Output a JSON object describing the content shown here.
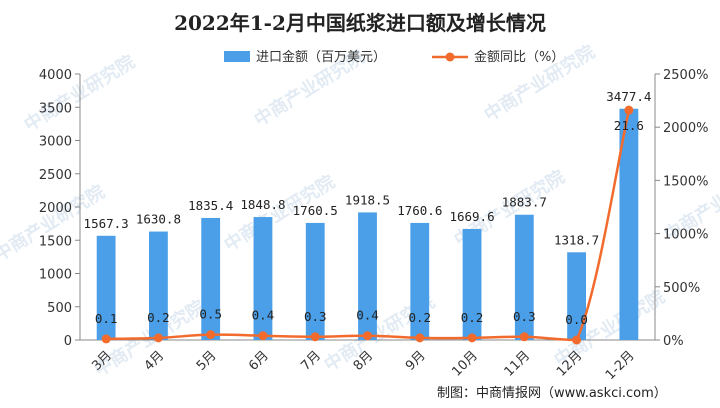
{
  "watermark": "中商产业研究院",
  "chart_data": {
    "type": "bar",
    "title": "2022年1-2月中国纸浆进口额及增长情况",
    "categories": [
      "3月",
      "4月",
      "5月",
      "6月",
      "7月",
      "8月",
      "9月",
      "10月",
      "11月",
      "12月",
      "1-2月"
    ],
    "series": [
      {
        "name": "进口金额（百万美元）",
        "type": "bar",
        "axis": "left",
        "color": "#4a9fe8",
        "values": [
          1567.3,
          1630.8,
          1835.4,
          1848.8,
          1760.5,
          1918.5,
          1760.6,
          1669.6,
          1883.7,
          1318.7,
          3477.4
        ],
        "labels": [
          "1567.3",
          "1630.8",
          "1835.4",
          "1848.8",
          "1760.5",
          "1918.5",
          "1760.6",
          "1669.6",
          "1883.7",
          "1318.7",
          "3477.4"
        ]
      },
      {
        "name": "金额同比（%）",
        "type": "line",
        "axis": "right",
        "color": "#f26b2d",
        "values": [
          0.1,
          0.2,
          0.5,
          0.4,
          0.3,
          0.4,
          0.2,
          0.2,
          0.3,
          0.0,
          21.6
        ],
        "labels": [
          "0.1",
          "0.2",
          "0.5",
          "0.4",
          "0.3",
          "0.4",
          "0.2",
          "0.2",
          "0.3",
          "0.0",
          "21.6"
        ]
      }
    ],
    "ylim_left": [
      0,
      4000
    ],
    "yticks_left": [
      "0",
      "500",
      "1000",
      "1500",
      "2000",
      "2500",
      "3000",
      "3500",
      "4000"
    ],
    "ylim_right": [
      0,
      2500
    ],
    "yticks_right": [
      "0%",
      "500%",
      "1000%",
      "1500%",
      "2000%",
      "2500%"
    ],
    "legend_position": "top-center",
    "grid": false,
    "source": "制图：中商情报网（www.askci.com）"
  }
}
